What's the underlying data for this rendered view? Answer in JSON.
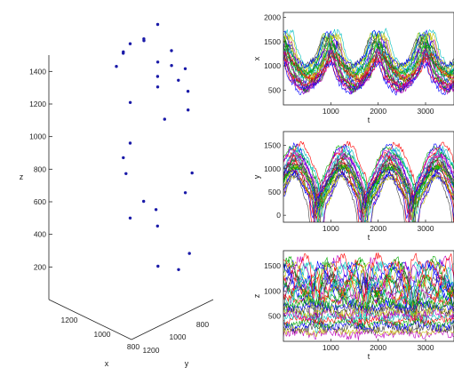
{
  "colors": {
    "marker": "#1a1aa8",
    "axis": "#222222",
    "series_palette": [
      "#0000ff",
      "#00aa00",
      "#ff0000",
      "#00bfbf",
      "#bf00bf",
      "#bfbf00",
      "#3f3f3f"
    ]
  },
  "chart_data": [
    {
      "type": "scatter",
      "projection": "3d",
      "xlabel": "x",
      "ylabel": "y",
      "zlabel": "z",
      "x_ticks": [
        "1200",
        "1000",
        "800"
      ],
      "y_ticks": [
        "1200",
        "1000",
        "800"
      ],
      "z_ticks": [
        "200",
        "400",
        "600",
        "800",
        "1000",
        "1200",
        "1400"
      ],
      "xlim": [
        700,
        1300
      ],
      "ylim": [
        700,
        1300
      ],
      "zlim": [
        0,
        1500
      ],
      "marker": "dot",
      "points": [
        {
          "x": 1000,
          "y": 1000,
          "z": 1470
        },
        {
          "x": 1100,
          "y": 1000,
          "z": 1330
        },
        {
          "x": 900,
          "y": 1000,
          "z": 1350
        },
        {
          "x": 1150,
          "y": 950,
          "z": 1300
        },
        {
          "x": 850,
          "y": 1050,
          "z": 1300
        },
        {
          "x": 950,
          "y": 1050,
          "z": 1280
        },
        {
          "x": 1200,
          "y": 1000,
          "z": 1270
        },
        {
          "x": 800,
          "y": 1000,
          "z": 1280
        },
        {
          "x": 1250,
          "y": 1000,
          "z": 1200
        },
        {
          "x": 1300,
          "y": 950,
          "z": 1150
        },
        {
          "x": 800,
          "y": 1050,
          "z": 1230
        },
        {
          "x": 780,
          "y": 1000,
          "z": 1150
        },
        {
          "x": 1050,
          "y": 950,
          "z": 1110
        },
        {
          "x": 1020,
          "y": 980,
          "z": 1070
        },
        {
          "x": 1300,
          "y": 1000,
          "z": 1090
        },
        {
          "x": 750,
          "y": 1030,
          "z": 1060
        },
        {
          "x": 1150,
          "y": 1050,
          "z": 950
        },
        {
          "x": 900,
          "y": 1050,
          "z": 950
        },
        {
          "x": 1200,
          "y": 1000,
          "z": 660
        },
        {
          "x": 800,
          "y": 950,
          "z": 620
        },
        {
          "x": 1250,
          "y": 1000,
          "z": 550
        },
        {
          "x": 750,
          "y": 1050,
          "z": 560
        },
        {
          "x": 1280,
          "y": 950,
          "z": 420
        },
        {
          "x": 720,
          "y": 1050,
          "z": 200
        },
        {
          "x": 1200,
          "y": 1000,
          "z": 200
        },
        {
          "x": 1300,
          "y": 800,
          "z": 180
        },
        {
          "x": 700,
          "y": 1150,
          "z": 150
        },
        {
          "x": 800,
          "y": 1200,
          "z": 150
        },
        {
          "x": 1230,
          "y": 780,
          "z": 150
        },
        {
          "x": 1150,
          "y": 850,
          "z": 110
        }
      ]
    },
    {
      "type": "line",
      "xlabel": "t",
      "ylabel": "x",
      "xlim": [
        0,
        3600
      ],
      "ylim": [
        200,
        2100
      ],
      "x_ticks": [
        "1000",
        "2000",
        "3000"
      ],
      "y_ticks": [
        "500",
        "1000",
        "1500",
        "2000"
      ],
      "series_count": 30,
      "note_pattern": "periodic, period about 1000 samples, peaks near t=300, 1000, 2000, 2900"
    },
    {
      "type": "line",
      "xlabel": "t",
      "ylabel": "y",
      "xlim": [
        0,
        3600
      ],
      "ylim": [
        -150,
        1800
      ],
      "x_ticks": [
        "1000",
        "2000",
        "3000"
      ],
      "y_ticks": [
        "0",
        "500",
        "1000",
        "1500"
      ],
      "series_count": 30
    },
    {
      "type": "line",
      "xlabel": "t",
      "ylabel": "z",
      "xlim": [
        0,
        3600
      ],
      "ylim": [
        0,
        1800
      ],
      "x_ticks": [
        "1000",
        "2000",
        "3000"
      ],
      "y_ticks": [
        "500",
        "1000",
        "1500"
      ],
      "series_count": 30
    }
  ]
}
